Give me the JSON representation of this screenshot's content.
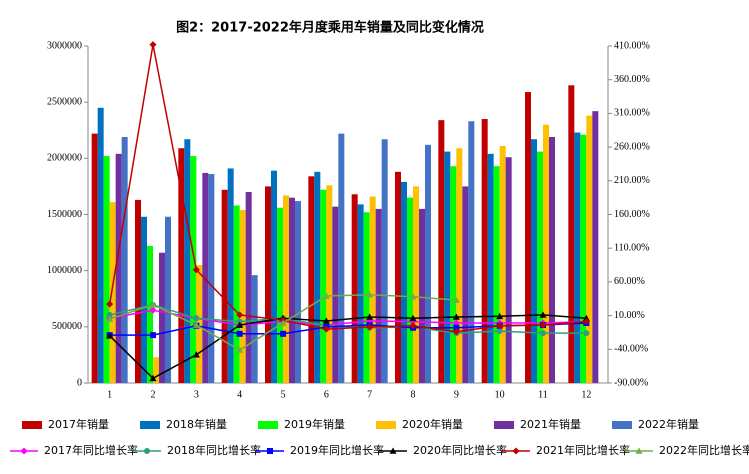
{
  "chart_data": {
    "type": "bar",
    "title": "图2：2017-2022年月度乘用车销量及同比变化情况",
    "categories": [
      "1",
      "2",
      "3",
      "4",
      "5",
      "6",
      "7",
      "8",
      "9",
      "10",
      "11",
      "12"
    ],
    "ylim": [
      0,
      3000000
    ],
    "yticks": [
      0,
      500000,
      1000000,
      1500000,
      2000000,
      2500000,
      3000000
    ],
    "y2lim": [
      -90,
      410
    ],
    "y2ticks": [
      {
        "value": -90,
        "label": "-90.00%"
      },
      {
        "value": -40,
        "label": "-40.00%"
      },
      {
        "value": 10,
        "label": "10.00%"
      },
      {
        "value": 60,
        "label": "60.00%"
      },
      {
        "value": 110,
        "label": "110.00%"
      },
      {
        "value": 160,
        "label": "160.00%"
      },
      {
        "value": 210,
        "label": "210.00%"
      },
      {
        "value": 260,
        "label": "260.00%"
      },
      {
        "value": 310,
        "label": "310.00%"
      },
      {
        "value": 360,
        "label": "360.00%"
      },
      {
        "value": 410,
        "label": "410.00%"
      }
    ],
    "series": [
      {
        "name": "2017年销量",
        "type": "bar",
        "color": "#c00000",
        "values": [
          2220000,
          1630000,
          2090000,
          1720000,
          1750000,
          1840000,
          1680000,
          1880000,
          2340000,
          2350000,
          2590000,
          2650000
        ]
      },
      {
        "name": "2018年销量",
        "type": "bar",
        "color": "#0070c0",
        "values": [
          2450000,
          1480000,
          2170000,
          1910000,
          1890000,
          1880000,
          1590000,
          1790000,
          2060000,
          2040000,
          2170000,
          2230000
        ]
      },
      {
        "name": "2019年销量",
        "type": "bar",
        "color": "#00ff00",
        "values": [
          2020000,
          1220000,
          2020000,
          1580000,
          1560000,
          1720000,
          1520000,
          1650000,
          1930000,
          1930000,
          2060000,
          2210000
        ]
      },
      {
        "name": "2020年销量",
        "type": "bar",
        "color": "#ffc000",
        "values": [
          1610000,
          230000,
          1050000,
          1540000,
          1670000,
          1760000,
          1660000,
          1750000,
          2090000,
          2110000,
          2300000,
          2380000
        ]
      },
      {
        "name": "2021年销量",
        "type": "bar",
        "color": "#7030a0",
        "values": [
          2040000,
          1160000,
          1870000,
          1700000,
          1650000,
          1570000,
          1550000,
          1550000,
          1750000,
          2010000,
          2190000,
          2420000
        ]
      },
      {
        "name": "2022年销量",
        "type": "bar",
        "color": "#4472c4",
        "values": [
          2190000,
          1480000,
          1860000,
          960000,
          1620000,
          2220000,
          2170000,
          2120000,
          2330000,
          null,
          null,
          null
        ]
      },
      {
        "name": "2017年同比增长率",
        "type": "line",
        "axis": "y2",
        "marker": "diamond",
        "color": "#ff00ff",
        "values": [
          6,
          18,
          6,
          -4,
          1,
          -4,
          2,
          1,
          -1,
          -1,
          -1,
          1
        ]
      },
      {
        "name": "2018年同比增长率",
        "type": "line",
        "axis": "y2",
        "marker": "circle",
        "color": "#2e9e7e",
        "values": [
          11,
          26,
          6,
          1,
          6,
          -5,
          -8,
          -7,
          -16,
          -13,
          -16,
          -16
        ]
      },
      {
        "name": "2019年同比增长率",
        "type": "line",
        "axis": "y2",
        "marker": "square",
        "color": "#0000ff",
        "values": [
          -19,
          -19,
          -5,
          -17,
          -17,
          -7,
          -4,
          -8,
          -8,
          -5,
          -4,
          -1
        ]
      },
      {
        "name": "2020年同比增长率",
        "type": "line",
        "axis": "y2",
        "marker": "triangle",
        "color": "#000000",
        "values": [
          -20,
          -83,
          -48,
          -4,
          6,
          2,
          8,
          6,
          8,
          9,
          11,
          6
        ]
      },
      {
        "name": "2021年同比增长率",
        "type": "line",
        "axis": "y2",
        "marker": "diamond",
        "color": "#c00000",
        "values": [
          27,
          412,
          78,
          11,
          3,
          -10,
          -7,
          -5,
          -14,
          -5,
          -4,
          1
        ]
      },
      {
        "name": "2022年同比增长率",
        "type": "line",
        "axis": "y2",
        "marker": "triangle",
        "color": "#70ad47",
        "values": [
          5,
          26,
          -4,
          -41,
          -1,
          39,
          41,
          38,
          33,
          null,
          null,
          null
        ]
      }
    ]
  }
}
